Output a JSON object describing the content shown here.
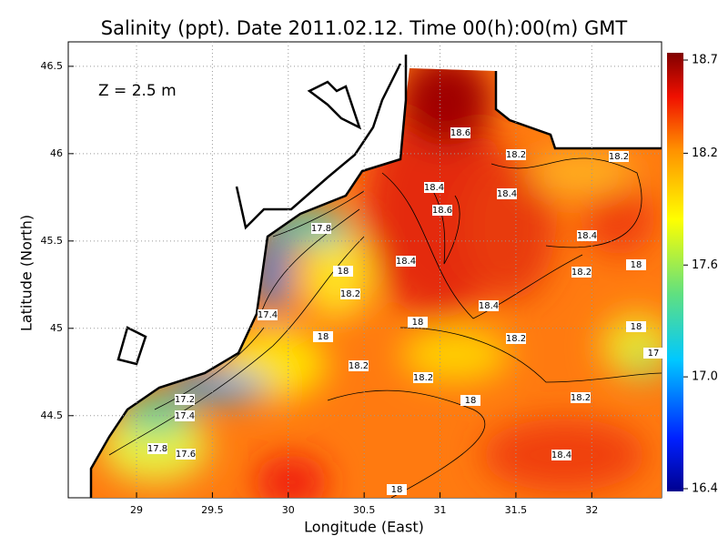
{
  "title": "Salinity (ppt). Date 2011.02.12. Time 00(h):00(m) GMT",
  "depth_label": "Z = 2.5 m",
  "x_axis": {
    "label": "Longitude (East)",
    "lim": [
      28.55,
      32.46
    ],
    "ticks": [
      29,
      29.5,
      30,
      30.5,
      31,
      31.5,
      32
    ]
  },
  "y_axis": {
    "label": "Latitude (North)",
    "lim": [
      44.03,
      46.64
    ],
    "ticks": [
      44.5,
      45,
      45.5,
      46,
      46.5
    ]
  },
  "colorbar": {
    "lim": [
      16.4,
      18.7
    ],
    "ticks": [
      {
        "value": 16.4,
        "label": "16.4"
      },
      {
        "value": 17,
        "label": "17.0"
      },
      {
        "value": 17.6,
        "label": "17.6"
      },
      {
        "value": 18.2,
        "label": "18.2"
      },
      {
        "value": 18.7,
        "label": "18.7"
      }
    ]
  },
  "contour_labels": [
    18.6,
    18.2,
    18.2,
    18.4,
    18.4,
    18.6,
    17.8,
    18.4,
    18.4,
    18,
    18.2,
    18,
    18.2,
    18.4,
    17.4,
    18,
    18,
    18.2,
    18,
    17,
    18.2,
    18.2,
    18,
    18.2,
    17.2,
    17.4,
    17.8,
    17.6,
    18.4,
    18
  ]
}
